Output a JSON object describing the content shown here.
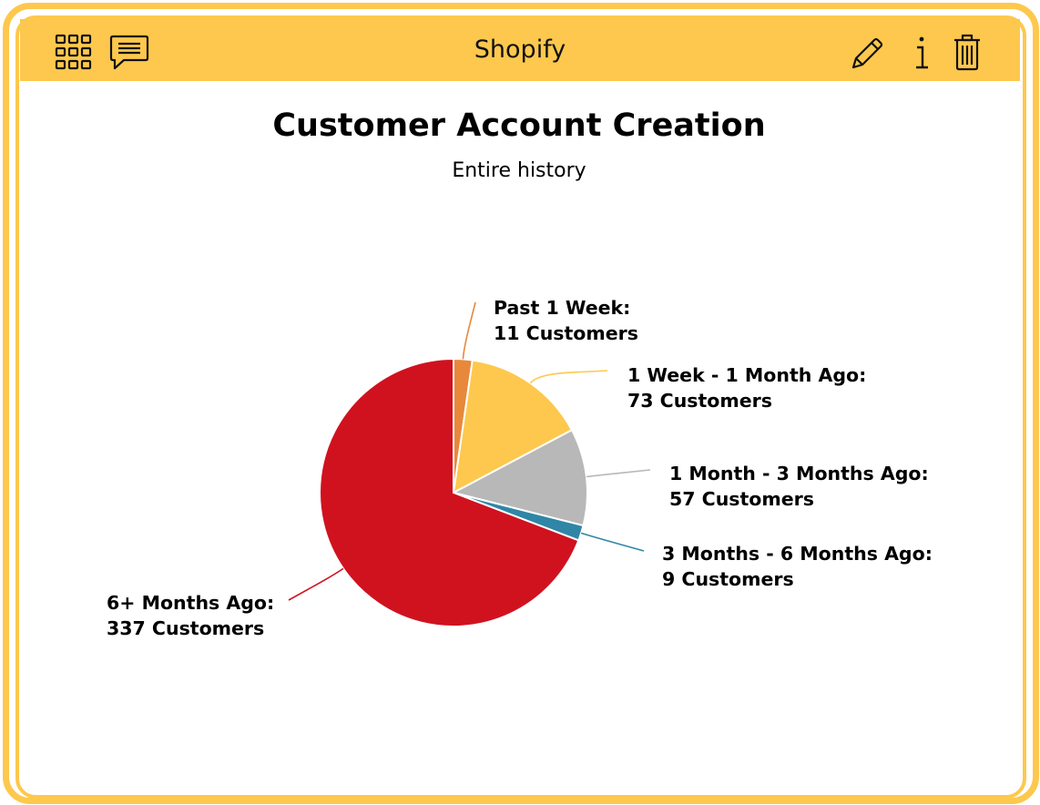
{
  "toolbar": {
    "title": "Shopify",
    "left_icons": [
      "grid-icon",
      "comment-icon"
    ],
    "right_icons": [
      "pencil-icon",
      "info-icon",
      "trash-icon"
    ]
  },
  "colors": {
    "frame": "#fdc84d",
    "slices": [
      "#e8883a",
      "#fdc84d",
      "#b8b8b8",
      "#2f86a6",
      "#d0121f"
    ]
  },
  "chart_data": {
    "type": "pie",
    "title": "Customer Account Creation",
    "subtitle": "Entire history",
    "slices": [
      {
        "name": "Past 1 Week:",
        "value": 11,
        "value_label": "11 Customers"
      },
      {
        "name": "1 Week - 1 Month Ago:",
        "value": 73,
        "value_label": "73 Customers"
      },
      {
        "name": "1 Month - 3 Months Ago:",
        "value": 57,
        "value_label": "57 Customers"
      },
      {
        "name": "3 Months - 6 Months Ago:",
        "value": 9,
        "value_label": "9 Customers"
      },
      {
        "name": "6+ Months Ago:",
        "value": 337,
        "value_label": "337 Customers"
      }
    ],
    "start_angle": "12 o'clock",
    "direction": "clockwise",
    "data_labels": "outside with connector lines"
  }
}
